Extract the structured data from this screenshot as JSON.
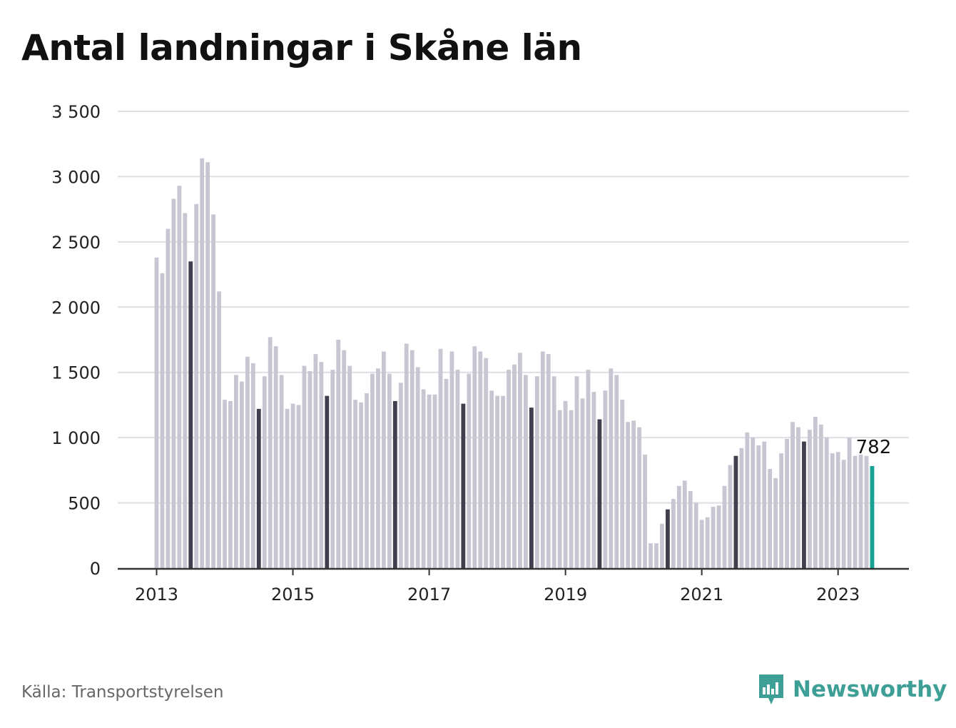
{
  "colors": {
    "bar": "#c7c7d3",
    "bar_highlight": "#3f3f4e",
    "bar_latest": "#16a394",
    "grid": "#dedee4",
    "axis": "#333333",
    "brand": "#3d9f96"
  },
  "source": "Källa: Transportstyrelsen",
  "brand_name": "Newsworthy",
  "chart_data": {
    "type": "bar",
    "title": "Antal landningar i Skåne län",
    "xlabel": "",
    "ylabel": "",
    "ylim": [
      0,
      3500
    ],
    "yticks": [
      0,
      500,
      1000,
      1500,
      2000,
      2500,
      3000,
      3500
    ],
    "ytick_labels": [
      "0",
      "500",
      "1 000",
      "1 500",
      "2 000",
      "2 500",
      "3 000",
      "3 500"
    ],
    "xtick_labels": [
      "2013",
      "2015",
      "2017",
      "2019",
      "2021",
      "2023"
    ],
    "start": "2013-01",
    "highlight_month": 7,
    "grid": true,
    "latest_label": "782",
    "values": [
      2380,
      2260,
      2600,
      2830,
      2930,
      2720,
      2350,
      2790,
      3140,
      3110,
      2710,
      2120,
      1290,
      1280,
      1480,
      1430,
      1620,
      1570,
      1220,
      1470,
      1770,
      1700,
      1480,
      1220,
      1260,
      1250,
      1550,
      1510,
      1640,
      1580,
      1320,
      1520,
      1750,
      1670,
      1550,
      1290,
      1270,
      1340,
      1490,
      1530,
      1660,
      1490,
      1280,
      1420,
      1720,
      1670,
      1540,
      1370,
      1330,
      1330,
      1680,
      1450,
      1660,
      1520,
      1260,
      1490,
      1700,
      1660,
      1610,
      1360,
      1320,
      1320,
      1520,
      1560,
      1650,
      1480,
      1230,
      1470,
      1660,
      1640,
      1470,
      1210,
      1280,
      1210,
      1470,
      1300,
      1520,
      1350,
      1140,
      1360,
      1530,
      1480,
      1290,
      1120,
      1130,
      1080,
      870,
      190,
      190,
      340,
      450,
      530,
      630,
      670,
      590,
      500,
      370,
      390,
      470,
      480,
      630,
      790,
      860,
      920,
      1040,
      1000,
      940,
      970,
      760,
      690,
      880,
      990,
      1120,
      1080,
      970,
      1060,
      1160,
      1100,
      1000,
      880,
      890,
      830,
      1000,
      860,
      870,
      860,
      782
    ]
  }
}
